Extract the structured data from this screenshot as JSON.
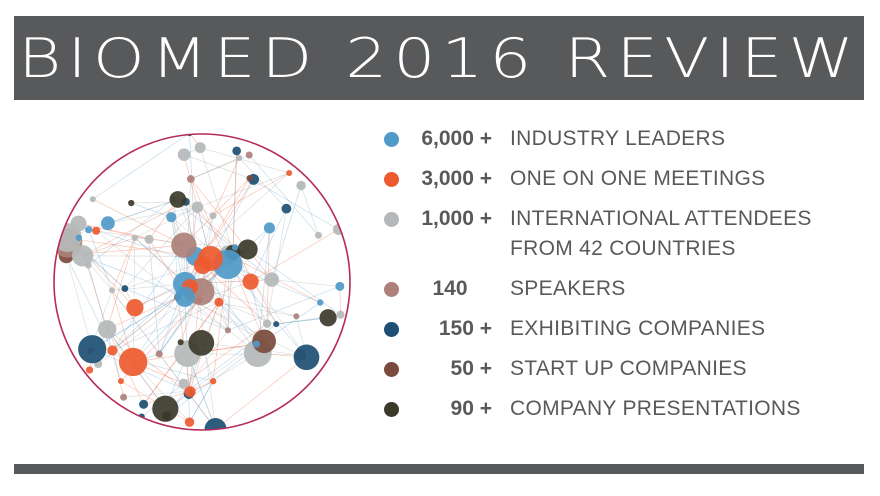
{
  "banner": {
    "title": "BIOMED 2016 REVIEW"
  },
  "stats": [
    {
      "number": "6,000 +",
      "label": "INDUSTRY LEADERS",
      "color": "#4f9ac9",
      "dot_name": "blue-dot-icon"
    },
    {
      "number": "3,000 +",
      "label": "ONE ON ONE MEETINGS",
      "color": "#ee5a2f",
      "dot_name": "orange-dot-icon"
    },
    {
      "number": "1,000 +",
      "label": "INTERNATIONAL ATTENDEES\nFROM 42 COUNTRIES",
      "color": "#b4b8b8",
      "dot_name": "gray-dot-icon"
    },
    {
      "number": "140",
      "label": "SPEAKERS",
      "color": "#ad8079",
      "dot_name": "mauve-dot-icon"
    },
    {
      "number": "150 +",
      "label": "EXHIBITING COMPANIES",
      "color": "#1c4f73",
      "dot_name": "navy-dot-icon"
    },
    {
      "number": "50 +",
      "label": "START UP COMPANIES",
      "color": "#7a4a3c",
      "dot_name": "brown-dot-icon"
    },
    {
      "number": "90 +",
      "label": "COMPANY PRESENTATIONS",
      "color": "#3b3a2a",
      "dot_name": "dark-olive-dot-icon"
    }
  ],
  "colors": {
    "banner_bg": "#58595b",
    "text": "#58595b",
    "circle_border": "#b52a5a"
  },
  "network_graphic": {
    "icon": "network-graph-icon"
  }
}
